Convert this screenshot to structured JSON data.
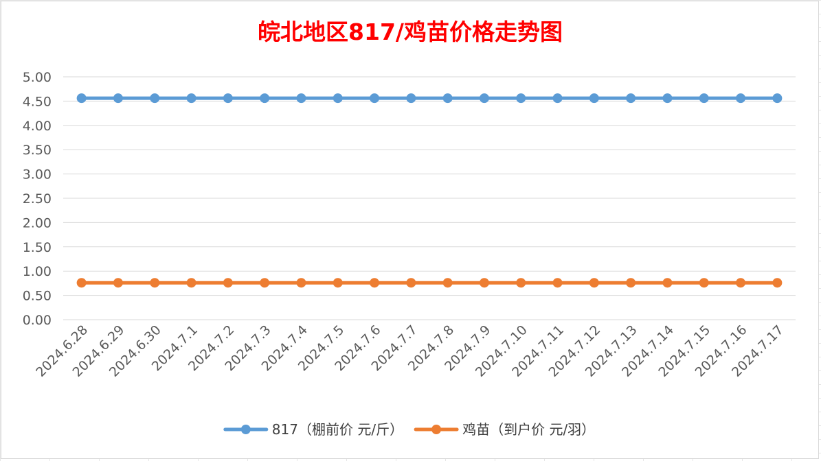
{
  "chart_data": {
    "type": "line",
    "title": "皖北地区817/鸡苗价格走势图",
    "title_color": "#ff0000",
    "categories": [
      "2024.6.28",
      "2024.6.29",
      "2024.6.30",
      "2024.7.1",
      "2024.7.2",
      "2024.7.3",
      "2024.7.4",
      "2024.7.5",
      "2024.7.6",
      "2024.7.7",
      "2024.7.8",
      "2024.7.9",
      "2024.7.10",
      "2024.7.11",
      "2024.7.12",
      "2024.7.13",
      "2024.7.14",
      "2024.7.15",
      "2024.7.16",
      "2024.7.17"
    ],
    "ylim": [
      0,
      5
    ],
    "yticks": [
      "0.00",
      "0.50",
      "1.00",
      "1.50",
      "2.00",
      "2.50",
      "3.00",
      "3.50",
      "4.00",
      "4.50",
      "5.00"
    ],
    "grid": true,
    "legend_position": "bottom",
    "series": [
      {
        "name": "817（棚前价 元/斤）",
        "color": "#5b9bd5",
        "values": [
          4.56,
          4.56,
          4.56,
          4.56,
          4.56,
          4.56,
          4.56,
          4.56,
          4.56,
          4.56,
          4.56,
          4.56,
          4.56,
          4.56,
          4.56,
          4.56,
          4.56,
          4.56,
          4.56,
          4.56
        ]
      },
      {
        "name": "鸡苗（到户价 元/羽）",
        "color": "#ed7d31",
        "values": [
          0.76,
          0.76,
          0.76,
          0.76,
          0.76,
          0.76,
          0.76,
          0.76,
          0.76,
          0.76,
          0.76,
          0.76,
          0.76,
          0.76,
          0.76,
          0.76,
          0.76,
          0.76,
          0.76,
          0.76
        ]
      }
    ]
  }
}
